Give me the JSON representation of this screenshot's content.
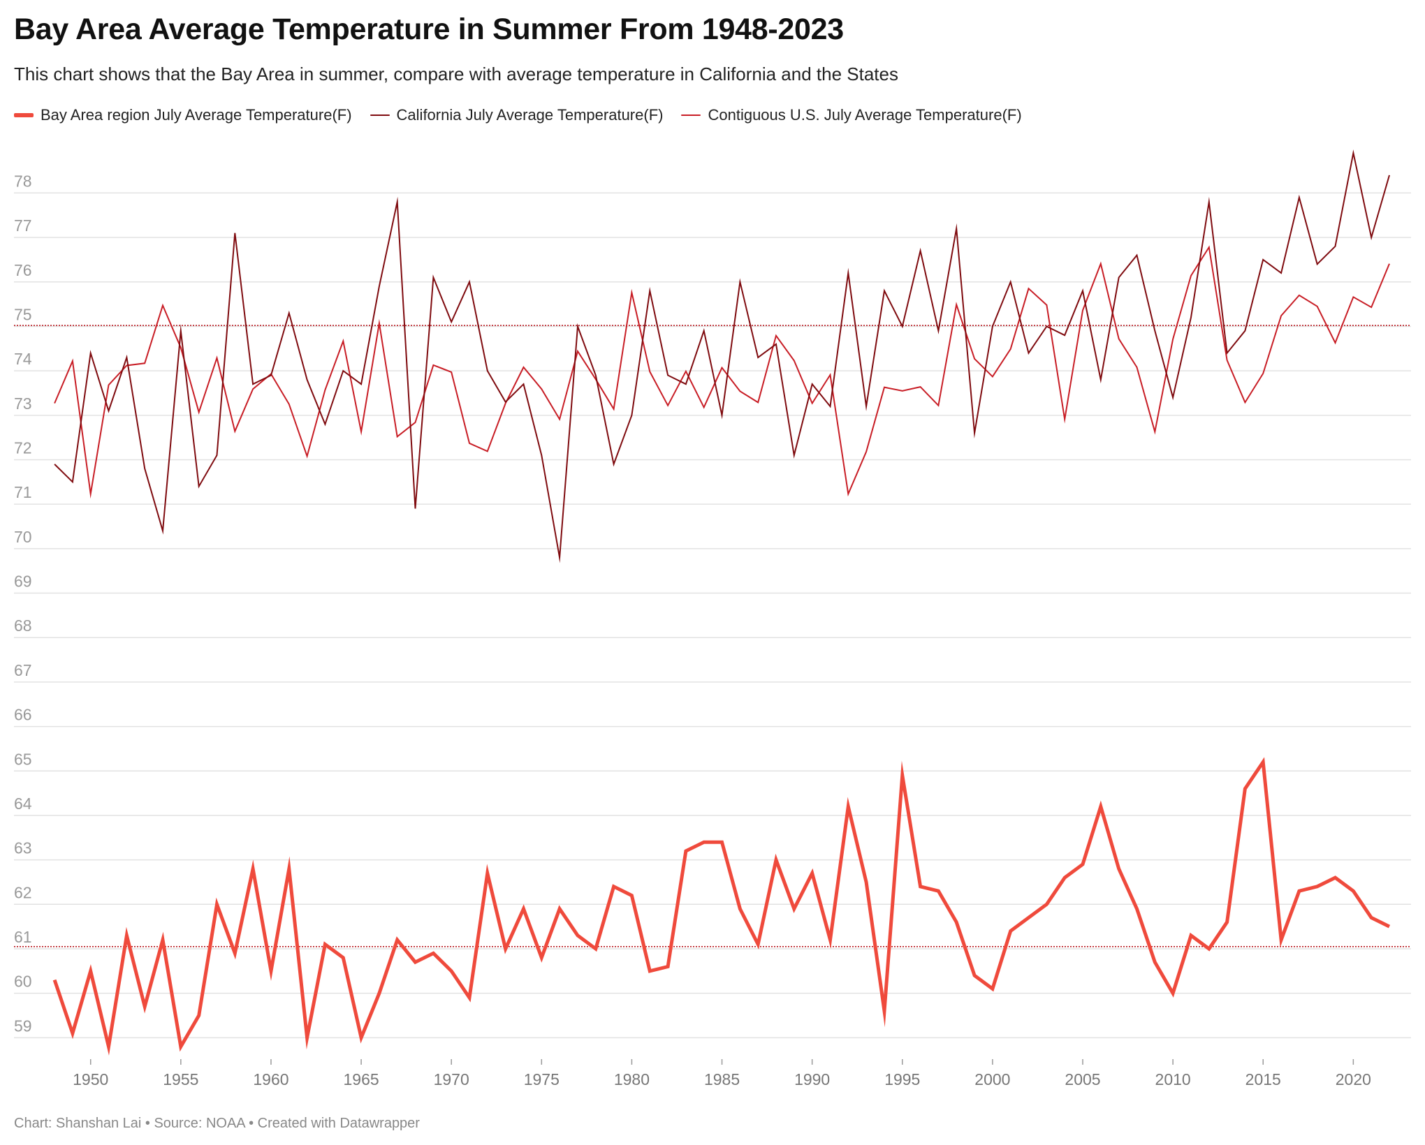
{
  "title": "Bay Area Average Temperature in Summer From 1948-2023",
  "subtitle": "This chart shows that the Bay Area in summer, compare with average temperature in California and the States",
  "footer": "Chart: Shanshan Lai • Source: NOAA • Created with Datawrapper",
  "colors": {
    "bay_area": "#ef4a3c",
    "california": "#7f0b0f",
    "us": "#c81d25",
    "grid": "#e2e2e2",
    "reference": "#b8181f"
  },
  "chart_data": {
    "type": "line",
    "title": "Bay Area Average Temperature in Summer From 1948-2023",
    "xlabel": "",
    "ylabel": "",
    "x": [
      1948,
      1949,
      1950,
      1951,
      1952,
      1953,
      1954,
      1955,
      1956,
      1957,
      1958,
      1959,
      1960,
      1961,
      1962,
      1963,
      1964,
      1965,
      1966,
      1967,
      1968,
      1969,
      1970,
      1971,
      1972,
      1973,
      1974,
      1975,
      1976,
      1977,
      1978,
      1979,
      1980,
      1981,
      1982,
      1983,
      1984,
      1985,
      1986,
      1987,
      1988,
      1989,
      1990,
      1991,
      1992,
      1993,
      1994,
      1995,
      1996,
      1997,
      1998,
      1999,
      2000,
      2001,
      2002,
      2003,
      2004,
      2005,
      2006,
      2007,
      2008,
      2009,
      2010,
      2011,
      2012,
      2013,
      2014,
      2015,
      2016,
      2017,
      2018,
      2019,
      2020,
      2021,
      2022
    ],
    "xlim": [
      1947.3,
      2023.2
    ],
    "ylim": [
      58.55,
      79.2
    ],
    "x_ticks": [
      1950,
      1955,
      1960,
      1965,
      1970,
      1975,
      1980,
      1985,
      1990,
      1995,
      2000,
      2005,
      2010,
      2015,
      2020
    ],
    "y_ticks": [
      59,
      60,
      61,
      62,
      63,
      64,
      65,
      66,
      67,
      68,
      69,
      70,
      71,
      72,
      73,
      74,
      75,
      76,
      77,
      78
    ],
    "grid": true,
    "legend_position": "top-left",
    "reference_lines": [
      75.02,
      61.05
    ],
    "series": [
      {
        "name": "Bay Area region July Average Temperature(F)",
        "color": "#ef4a3c",
        "width": 5,
        "values": [
          60.3,
          59.1,
          60.5,
          58.8,
          61.3,
          59.7,
          61.2,
          58.8,
          59.5,
          62.0,
          60.9,
          62.8,
          60.5,
          62.8,
          59.0,
          61.1,
          60.8,
          59.0,
          60.0,
          61.2,
          60.7,
          60.9,
          60.5,
          59.9,
          62.7,
          61.0,
          61.9,
          60.8,
          61.9,
          61.3,
          61.0,
          62.4,
          62.2,
          60.5,
          60.6,
          63.2,
          63.4,
          63.4,
          61.9,
          61.1,
          63.0,
          61.9,
          62.7,
          61.2,
          64.2,
          62.5,
          59.6,
          64.9,
          62.4,
          62.3,
          61.6,
          60.4,
          60.1,
          61.4,
          61.7,
          62.0,
          62.6,
          62.9,
          64.2,
          62.8,
          61.9,
          60.7,
          60.0,
          61.3,
          61.0,
          61.6,
          64.6,
          65.2,
          61.2,
          62.3,
          62.4,
          62.6,
          62.3,
          61.7,
          61.5
        ]
      },
      {
        "name": "California July Average Temperature(F)",
        "color": "#7f0b0f",
        "width": 2,
        "values": [
          71.9,
          71.5,
          74.4,
          73.1,
          74.3,
          71.8,
          70.4,
          74.9,
          71.4,
          72.1,
          77.1,
          73.7,
          73.9,
          75.3,
          73.8,
          72.8,
          74.0,
          73.7,
          75.9,
          77.8,
          70.9,
          76.1,
          75.1,
          76.0,
          74.0,
          73.3,
          73.7,
          72.1,
          69.8,
          75.0,
          73.9,
          71.9,
          73.0,
          75.8,
          73.9,
          73.7,
          74.9,
          73.0,
          76.0,
          74.3,
          74.6,
          72.1,
          73.7,
          73.2,
          76.2,
          73.2,
          75.8,
          75.0,
          76.7,
          74.9,
          77.2,
          72.6,
          75.0,
          76.0,
          74.4,
          75.0,
          74.8,
          75.8,
          73.8,
          76.1,
          76.6,
          74.9,
          73.4,
          75.2,
          77.8,
          74.4,
          74.9,
          76.5,
          76.2,
          77.9,
          76.4,
          76.8,
          78.9,
          77.0,
          78.4
        ]
      },
      {
        "name": "Contiguous U.S. July Average Temperature(F)",
        "color": "#c81d25",
        "width": 2,
        "values": [
          73.27,
          74.22,
          71.23,
          73.68,
          74.12,
          74.17,
          75.47,
          74.52,
          73.07,
          74.29,
          72.64,
          73.59,
          73.93,
          73.25,
          72.08,
          73.57,
          74.67,
          72.63,
          75.07,
          72.52,
          72.84,
          74.13,
          73.97,
          72.37,
          72.19,
          73.27,
          74.08,
          73.59,
          72.91,
          74.44,
          73.81,
          73.14,
          75.76,
          73.98,
          73.22,
          73.99,
          73.18,
          74.07,
          73.54,
          73.29,
          74.79,
          74.23,
          73.27,
          73.91,
          71.23,
          72.18,
          73.63,
          73.55,
          73.64,
          73.22,
          75.49,
          74.27,
          73.87,
          74.49,
          75.85,
          75.48,
          72.91,
          75.36,
          76.41,
          74.72,
          74.08,
          72.63,
          74.71,
          76.14,
          76.78,
          74.24,
          73.29,
          73.94,
          75.24,
          75.7,
          75.45,
          74.63,
          75.66,
          75.43,
          76.41
        ]
      }
    ]
  }
}
